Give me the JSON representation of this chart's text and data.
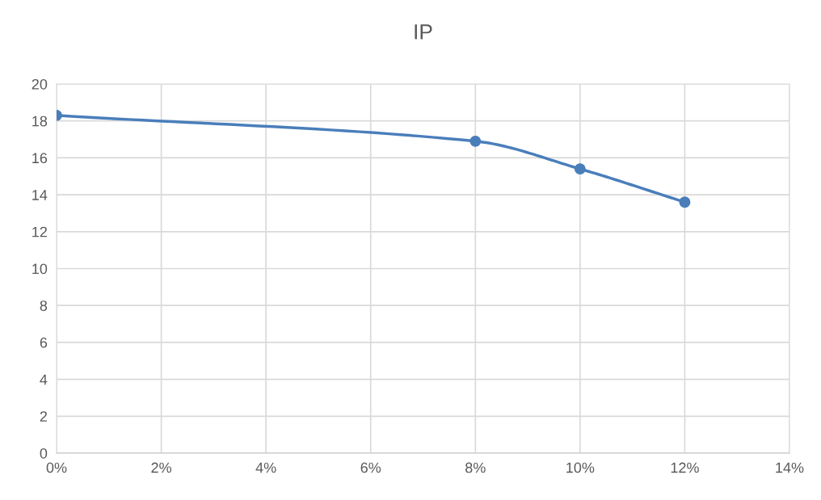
{
  "chart_data": {
    "type": "line",
    "title": "IP",
    "x": [
      0,
      8,
      10,
      12
    ],
    "series": [
      {
        "color": "#4a7ebb",
        "values": [
          18.3,
          16.9,
          15.4,
          13.6
        ]
      }
    ],
    "xlim": [
      0,
      14
    ],
    "xticks": [
      {
        "value": 0,
        "label": "0%"
      },
      {
        "value": 2,
        "label": "2%"
      },
      {
        "value": 4,
        "label": "4%"
      },
      {
        "value": 6,
        "label": "6%"
      },
      {
        "value": 8,
        "label": "8%"
      },
      {
        "value": 10,
        "label": "10%"
      },
      {
        "value": 12,
        "label": "12%"
      },
      {
        "value": 14,
        "label": "14%"
      }
    ],
    "ylim": [
      0,
      20
    ],
    "yticks": [
      0,
      2,
      4,
      6,
      8,
      10,
      12,
      14,
      16,
      18,
      20
    ],
    "grid": true,
    "marker": "circle",
    "line_style": "solid",
    "legend": false
  }
}
